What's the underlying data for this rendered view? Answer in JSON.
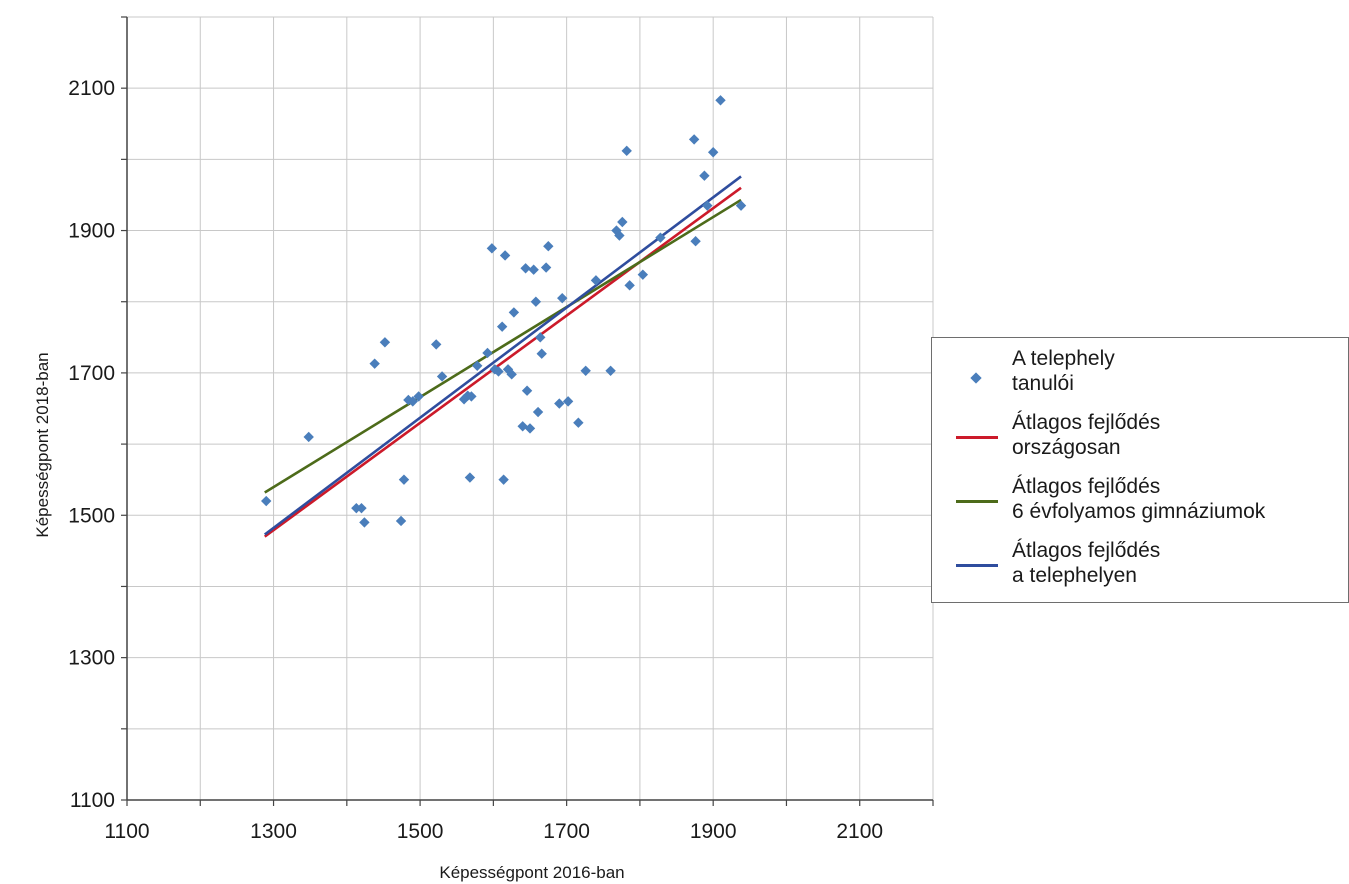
{
  "chart_data": {
    "type": "scatter",
    "title": "",
    "xlabel": "Képességpont 2016-ban",
    "ylabel": "Képességpont 2018-ban",
    "xlim": [
      1100,
      2200
    ],
    "ylim": [
      1100,
      2200
    ],
    "x_ticks": [
      "1100",
      "1300",
      "1500",
      "1700",
      "1900",
      "2100"
    ],
    "y_ticks": [
      "1100",
      "1300",
      "1500",
      "1700",
      "1900",
      "2100"
    ],
    "grid": true,
    "legend_position": "right",
    "points": {
      "name_lines": [
        "A telephely",
        "tanulói"
      ],
      "color": "#4a7ebb",
      "x": [
        1290,
        1348,
        1413,
        1420,
        1424,
        1438,
        1452,
        1474,
        1478,
        1484,
        1490,
        1498,
        1522,
        1530,
        1560,
        1565,
        1568,
        1570,
        1578,
        1592,
        1598,
        1602,
        1607,
        1612,
        1614,
        1616,
        1620,
        1625,
        1628,
        1640,
        1644,
        1646,
        1650,
        1655,
        1658,
        1661,
        1664,
        1666,
        1672,
        1675,
        1690,
        1694,
        1702,
        1716,
        1726,
        1740,
        1760,
        1768,
        1772,
        1776,
        1782,
        1786,
        1804,
        1828,
        1874,
        1876,
        1888,
        1892,
        1900,
        1910,
        1938
      ],
      "y": [
        1520,
        1610,
        1510,
        1510,
        1490,
        1713,
        1743,
        1492,
        1550,
        1662,
        1660,
        1667,
        1740,
        1695,
        1663,
        1668,
        1553,
        1667,
        1710,
        1728,
        1875,
        1705,
        1702,
        1765,
        1550,
        1865,
        1705,
        1698,
        1785,
        1625,
        1847,
        1675,
        1622,
        1845,
        1800,
        1645,
        1750,
        1727,
        1848,
        1878,
        1657,
        1805,
        1660,
        1630,
        1703,
        1830,
        1703,
        1900,
        1893,
        1912,
        2012,
        1823,
        1838,
        1890,
        2028,
        1885,
        1977,
        1935,
        2010,
        2083,
        1935
      ]
    },
    "series": [
      {
        "name_lines": [
          "Átlagos fejlődés",
          "országosan"
        ],
        "color": "#cc1a2a",
        "x": [
          1288,
          1938
        ],
        "y": [
          1470,
          1960
        ]
      },
      {
        "name_lines": [
          "Átlagos fejlődés",
          "6 évfolyamos gimnáziumok"
        ],
        "color": "#4d6b1a",
        "x": [
          1288,
          1938
        ],
        "y": [
          1532,
          1943
        ]
      },
      {
        "name_lines": [
          "Átlagos fejlődés",
          "a telephelyen"
        ],
        "color": "#2f4d9e",
        "x": [
          1288,
          1938
        ],
        "y": [
          1473,
          1976
        ]
      }
    ]
  }
}
